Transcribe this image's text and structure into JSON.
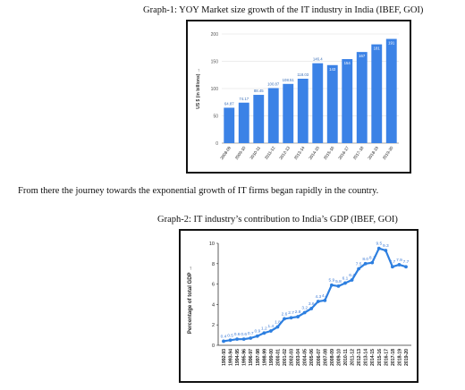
{
  "captions": {
    "graph1": "Graph-1: YOY Market size growth of the IT industry in India (IBEF, GOI)",
    "paragraph": "From there the journey towards the exponential growth of IT firms began rapidly in the country.",
    "graph2": "Graph-2: IT industry’s contribution to India’s GDP (IBEF, GOI)"
  },
  "colors": {
    "bar": "#3b82e6",
    "line": "#2d7fe0",
    "frame": "#111111",
    "grid": "#e6e6e6"
  },
  "chart_data": [
    {
      "type": "bar",
      "title": "",
      "ylabel": "US $ (in billions) →",
      "xlabel": "",
      "ylim": [
        0,
        200
      ],
      "yticks": [
        0,
        50,
        100,
        150,
        200
      ],
      "grid": true,
      "categories": [
        "2008-09",
        "2009-10",
        "2010-11",
        "2011-12",
        "2012-13",
        "2013-14",
        "2014-15",
        "2015-16",
        "2016-17",
        "2017-18",
        "2018-19",
        "2019-20"
      ],
      "values": [
        64.87,
        74.17,
        88.45,
        100.87,
        108.51,
        118.03,
        146.4,
        143,
        154,
        167,
        181,
        191
      ],
      "labels": [
        "64.87",
        "74.17",
        "88.45",
        "100.87",
        "108.51",
        "118.03",
        "146.4",
        "143",
        "154",
        "167",
        "181",
        "191"
      ]
    },
    {
      "type": "line",
      "title": "",
      "ylabel": "Percentage of total GDP →",
      "xlabel": "",
      "ylim": [
        0,
        10
      ],
      "yticks": [
        0,
        2,
        4,
        6,
        8,
        10
      ],
      "grid": false,
      "categories": [
        "1992-93",
        "1993-94",
        "1994-95",
        "1995-96",
        "1996-97",
        "1997-98",
        "1998-99",
        "1999-00",
        "2000-01",
        "2001-02",
        "2002-03",
        "2003-04",
        "2004-05",
        "2005-06",
        "2006-07",
        "2007-08",
        "2008-09",
        "2009-10",
        "2010-11",
        "2011-12",
        "2012-13",
        "2013-14",
        "2014-15",
        "2015-16",
        "2016-17",
        "2017-18",
        "2018-19",
        "2019-20"
      ],
      "values": [
        0.4,
        0.5,
        0.6,
        0.6,
        0.7,
        0.9,
        1.2,
        1.4,
        1.8,
        2.6,
        2.7,
        2.8,
        3.2,
        3.6,
        4.3,
        4.4,
        5.9,
        5.8,
        6.1,
        6.4,
        7.5,
        8.0,
        8.1,
        9.5,
        9.3,
        7.7,
        7.9,
        7.7
      ],
      "labels": [
        "0.4",
        "0.5",
        "0.6",
        "0.6",
        "0.7",
        "0.9",
        "1.2",
        "1.4",
        "1.8",
        "2.6",
        "2.7",
        "2.8",
        "3.2",
        "3.6",
        "4.3",
        "4.4",
        "5.9",
        "5.8",
        "6.1",
        "6.4",
        "7.5",
        "8.0",
        "8.1",
        "9.5",
        "9.3",
        "7.7",
        "7.9",
        "7.7"
      ]
    }
  ]
}
